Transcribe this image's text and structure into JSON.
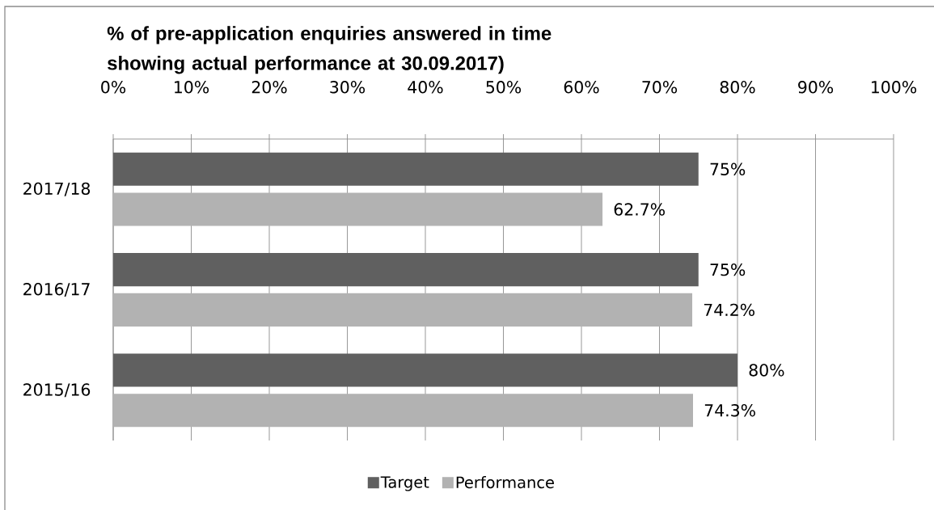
{
  "chart_data": {
    "type": "bar",
    "orientation": "horizontal",
    "title": "% of pre-application enquiries answered in time showing actual performance at 30.09.2017)",
    "categories": [
      "2017/18",
      "2016/17",
      "2015/16"
    ],
    "series": [
      {
        "name": "Target",
        "color": "#606060",
        "values": [
          75,
          75,
          80
        ],
        "value_labels": [
          "75%",
          "75%",
          "80%"
        ]
      },
      {
        "name": "Performance",
        "color": "#b2b2b2",
        "values": [
          62.7,
          74.2,
          74.3
        ],
        "value_labels": [
          "62.7%",
          "74.2%",
          "74.3%"
        ]
      }
    ],
    "xlim": [
      0,
      100
    ],
    "xticks": [
      {
        "value": 0,
        "label": "0%"
      },
      {
        "value": 10,
        "label": "10%"
      },
      {
        "value": 20,
        "label": "20%"
      },
      {
        "value": 30,
        "label": "30%"
      },
      {
        "value": 40,
        "label": "40%"
      },
      {
        "value": 50,
        "label": "50%"
      },
      {
        "value": 60,
        "label": "60%"
      },
      {
        "value": 70,
        "label": "70%"
      },
      {
        "value": 80,
        "label": "80%"
      },
      {
        "value": 90,
        "label": "90%"
      },
      {
        "value": 100,
        "label": "100%"
      }
    ],
    "grid": "x",
    "legend": "bottom"
  }
}
